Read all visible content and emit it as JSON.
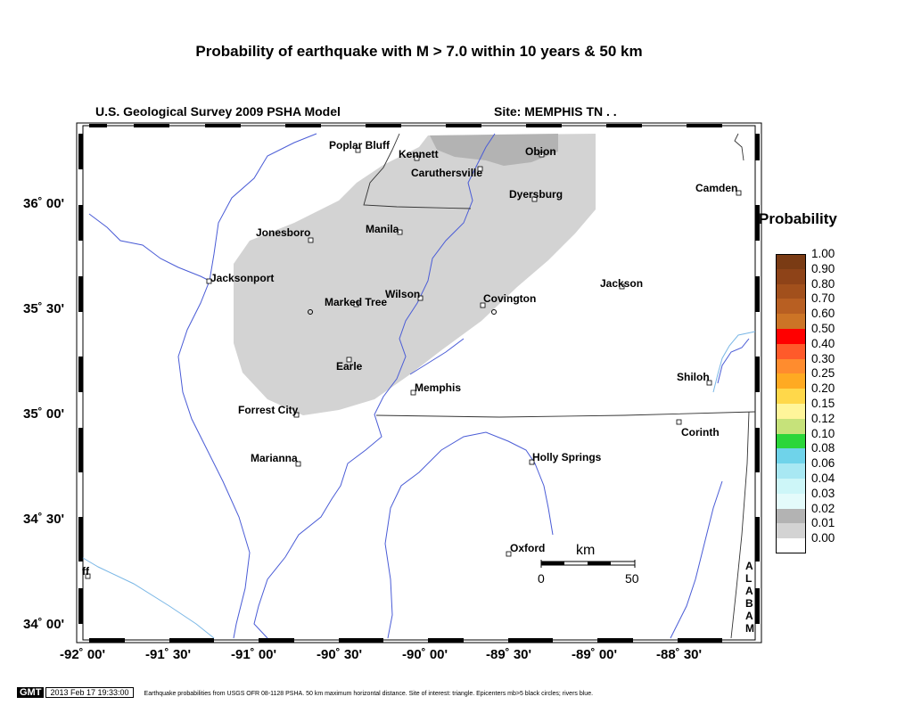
{
  "title": "Probability of earthquake with M > 7.0 within 10 years & 50 km",
  "model_label": "U.S. Geological Survey 2009 PSHA Model",
  "site_label": "Site: MEMPHIS  TN . .",
  "latitude_labels": [
    "36˚ 00'",
    "35˚ 30'",
    "35˚ 00'",
    "34˚ 30'",
    "34˚ 00'"
  ],
  "longitude_labels": [
    "-92˚ 00'",
    "-91˚ 30'",
    "-91˚ 00'",
    "-90˚ 30'",
    "-90˚ 00'",
    "-89˚ 30'",
    "-89˚ 00'",
    "-88˚ 30'"
  ],
  "cities": [
    {
      "name": "Poplar Bluff"
    },
    {
      "name": "Kennett"
    },
    {
      "name": "Obion"
    },
    {
      "name": "Caruthersville"
    },
    {
      "name": "Dyersburg"
    },
    {
      "name": "Camden"
    },
    {
      "name": "Jonesboro"
    },
    {
      "name": "Manila"
    },
    {
      "name": "Jacksonport"
    },
    {
      "name": "Jackson"
    },
    {
      "name": "Marked Tree"
    },
    {
      "name": "Wilson"
    },
    {
      "name": "Covington"
    },
    {
      "name": "Earle"
    },
    {
      "name": "Shiloh"
    },
    {
      "name": "Memphis"
    },
    {
      "name": "Forrest City"
    },
    {
      "name": "Corinth"
    },
    {
      "name": "Marianna"
    },
    {
      "name": "Holly Springs"
    },
    {
      "name": "Oxford"
    },
    {
      "name": "ff"
    }
  ],
  "state_label": "ALABAM",
  "scale_bar": {
    "unit": "km",
    "start": "0",
    "end": "50"
  },
  "legend": {
    "title": "Probability",
    "bins": [
      {
        "label": "1.00",
        "color": "#7a3b14"
      },
      {
        "label": "0.90",
        "color": "#8e4318"
      },
      {
        "label": "0.80",
        "color": "#a2501c"
      },
      {
        "label": "0.70",
        "color": "#b85f22"
      },
      {
        "label": "0.60",
        "color": "#cc7426"
      },
      {
        "label": "0.50",
        "color": "#ff0000"
      },
      {
        "label": "0.40",
        "color": "#ff5a2a"
      },
      {
        "label": "0.30",
        "color": "#ff8c2e"
      },
      {
        "label": "0.25",
        "color": "#ffaa22"
      },
      {
        "label": "0.20",
        "color": "#ffd84a"
      },
      {
        "label": "0.15",
        "color": "#fff59a"
      },
      {
        "label": "0.12",
        "color": "#c6e27a"
      },
      {
        "label": "0.10",
        "color": "#2bd63a"
      },
      {
        "label": "0.08",
        "color": "#6fd3ea"
      },
      {
        "label": "0.06",
        "color": "#a8e8f3"
      },
      {
        "label": "0.04",
        "color": "#cdf6f8"
      },
      {
        "label": "0.03",
        "color": "#e4fbfb"
      },
      {
        "label": "0.02",
        "color": "#b3b3b3"
      },
      {
        "label": "0.01",
        "color": "#d3d3d3"
      },
      {
        "label": "0.00",
        "color": "#ffffff"
      }
    ]
  },
  "footer": {
    "logo": "GMT",
    "timestamp": "2013 Feb 17 19:33:00",
    "caption": "Earthquake probabilities from USGS OFR 08-1128 PSHA. 50 km maximum horizontal distance. Site of interest: triangle. Epicenters mb>5 black circles; rivers blue."
  }
}
